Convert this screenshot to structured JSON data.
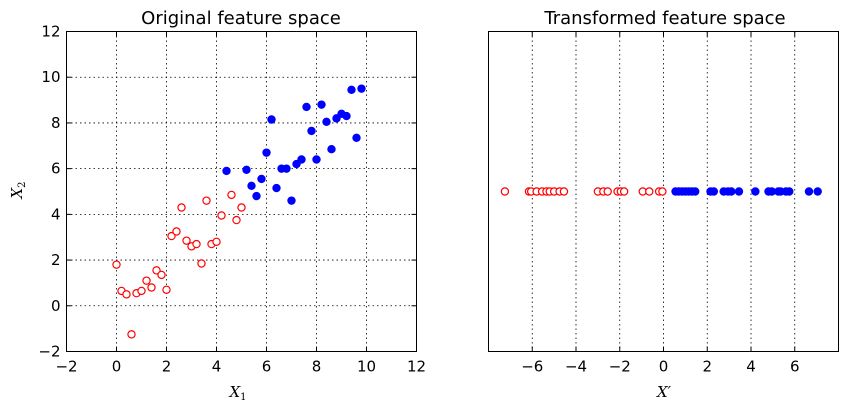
{
  "chart_data": [
    {
      "type": "scatter",
      "title": "Original feature space",
      "xlabel": "X",
      "xlabel_sub": "1",
      "ylabel": "X",
      "ylabel_sub": "2",
      "xlim": [
        -2,
        12
      ],
      "ylim": [
        -2,
        12
      ],
      "xticks": [
        -2,
        0,
        2,
        4,
        6,
        8,
        10,
        12
      ],
      "yticks": [
        -2,
        0,
        2,
        4,
        6,
        8,
        10,
        12
      ],
      "grid": true,
      "series": [
        {
          "color": "#ff0000",
          "marker": "hollow-circle",
          "points": [
            [
              0.0,
              1.8
            ],
            [
              0.2,
              0.65
            ],
            [
              0.4,
              0.5
            ],
            [
              0.6,
              -1.25
            ],
            [
              0.8,
              0.55
            ],
            [
              1.0,
              0.65
            ],
            [
              1.2,
              1.1
            ],
            [
              1.4,
              0.8
            ],
            [
              1.6,
              1.55
            ],
            [
              1.8,
              1.35
            ],
            [
              2.0,
              0.7
            ],
            [
              2.2,
              3.05
            ],
            [
              2.4,
              3.25
            ],
            [
              2.6,
              4.3
            ],
            [
              2.8,
              2.85
            ],
            [
              3.0,
              2.6
            ],
            [
              3.2,
              2.7
            ],
            [
              3.4,
              1.85
            ],
            [
              3.6,
              4.6
            ],
            [
              3.8,
              2.7
            ],
            [
              4.0,
              2.8
            ],
            [
              4.2,
              3.95
            ],
            [
              4.6,
              4.85
            ],
            [
              4.8,
              3.75
            ],
            [
              5.0,
              4.3
            ]
          ]
        },
        {
          "color": "#0000ff",
          "marker": "filled-circle",
          "points": [
            [
              4.4,
              5.9
            ],
            [
              5.2,
              5.95
            ],
            [
              5.4,
              5.25
            ],
            [
              5.6,
              4.8
            ],
            [
              5.8,
              5.55
            ],
            [
              6.0,
              6.7
            ],
            [
              6.2,
              8.15
            ],
            [
              6.4,
              5.15
            ],
            [
              6.6,
              6.0
            ],
            [
              6.8,
              6.0
            ],
            [
              7.0,
              4.6
            ],
            [
              7.2,
              6.2
            ],
            [
              7.4,
              6.4
            ],
            [
              7.6,
              8.7
            ],
            [
              7.8,
              7.65
            ],
            [
              8.0,
              6.4
            ],
            [
              8.2,
              8.8
            ],
            [
              8.4,
              8.05
            ],
            [
              8.6,
              6.85
            ],
            [
              8.8,
              8.2
            ],
            [
              9.0,
              8.4
            ],
            [
              9.2,
              8.3
            ],
            [
              9.4,
              9.45
            ],
            [
              9.6,
              7.35
            ],
            [
              9.8,
              9.5
            ]
          ]
        }
      ]
    },
    {
      "type": "scatter",
      "title": "Transformed feature space",
      "xlabel": "X′",
      "xlim": [
        -8,
        8
      ],
      "ylim": [
        -1,
        1
      ],
      "xticks": [
        -6,
        -4,
        -2,
        0,
        2,
        4,
        6
      ],
      "grid": true,
      "series": [
        {
          "color": "#ff0000",
          "marker": "hollow-circle",
          "x": [
            -7.25,
            -6.15,
            -6.05,
            -5.8,
            -5.55,
            -5.35,
            -5.2,
            -5.0,
            -4.75,
            -4.55,
            -3.0,
            -2.75,
            -2.55,
            -2.1,
            -1.95,
            -1.8,
            -0.95,
            -0.65,
            -0.2,
            -0.05
          ]
        },
        {
          "color": "#0000ff",
          "marker": "filled-circle",
          "x": [
            0.55,
            0.7,
            0.85,
            1.0,
            1.15,
            1.3,
            1.45,
            2.15,
            2.3,
            2.75,
            2.95,
            3.1,
            3.45,
            4.2,
            4.8,
            4.95,
            5.25,
            5.35,
            5.6,
            5.75,
            6.65,
            7.05
          ]
        }
      ]
    }
  ]
}
